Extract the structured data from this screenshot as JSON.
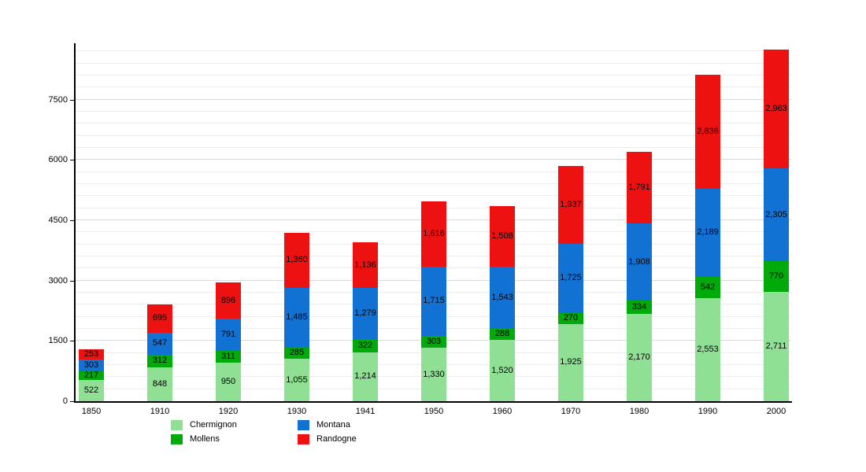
{
  "chart_data": {
    "type": "bar",
    "stacked": true,
    "title": "",
    "xlabel": "",
    "ylabel": "",
    "categories": [
      "1850",
      "1910",
      "1920",
      "1930",
      "1941",
      "1950",
      "1960",
      "1970",
      "1980",
      "1990",
      "2000"
    ],
    "series": [
      {
        "name": "Chermignon",
        "color": "#8fe095",
        "values": [
          522,
          848,
          950,
          1055,
          1214,
          1330,
          1520,
          1925,
          2170,
          2553,
          2711
        ]
      },
      {
        "name": "Mollens",
        "color": "#00aa0a",
        "values": [
          217,
          312,
          311,
          285,
          322,
          303,
          288,
          270,
          334,
          542,
          770
        ]
      },
      {
        "name": "Montana",
        "color": "#1272d4",
        "values": [
          303,
          547,
          791,
          1485,
          1279,
          1715,
          1543,
          1725,
          1908,
          2189,
          2305
        ]
      },
      {
        "name": "Randogne",
        "color": "#ee1111",
        "values": [
          253,
          695,
          896,
          1360,
          1136,
          1616,
          1508,
          1937,
          1791,
          2838,
          2963
        ]
      }
    ],
    "ylim": [
      0,
      8900
    ],
    "yticks": [
      0,
      1500,
      3000,
      4500,
      6000,
      7500
    ],
    "ytick_labels": [
      "0",
      "1500",
      "3000",
      "4500",
      "6000",
      "7500"
    ],
    "minor_grid_step": 300,
    "grid": true,
    "legend_position": "bottom",
    "legend_columns": [
      [
        "Chermignon",
        "Mollens"
      ],
      [
        "Montana",
        "Randogne"
      ]
    ],
    "value_label_format": "thousands-comma"
  }
}
